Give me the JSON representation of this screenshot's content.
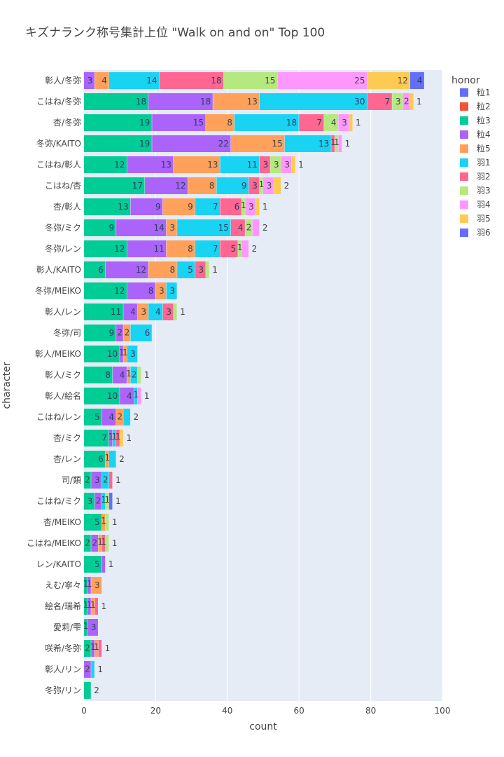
{
  "chart_data": {
    "type": "bar",
    "orientation": "horizontal",
    "barmode": "stack",
    "title": "キズナランク称号集計上位 \"Walk on and on\" Top 100",
    "xlabel": "count",
    "ylabel": "character",
    "xlim": [
      0,
      100
    ],
    "xticks": [
      "0",
      "20",
      "40",
      "60",
      "80",
      "100"
    ],
    "legend_title": "honor",
    "legend_position": "right",
    "categories": [
      "彰人/冬弥",
      "こはね/冬弥",
      "杏/冬弥",
      "冬弥/KAITO",
      "こはね/彰人",
      "こはね/杏",
      "杏/彰人",
      "冬弥/ミク",
      "冬弥/レン",
      "彰人/KAITO",
      "冬弥/MEIKO",
      "彰人/レン",
      "冬弥/司",
      "彰人/MEIKO",
      "彰人/ミク",
      "彰人/絵名",
      "こはね/レン",
      "杏/ミク",
      "杏/レン",
      "司/類",
      "こはね/ミク",
      "杏/MEIKO",
      "こはね/MEIKO",
      "レン/KAITO",
      "えむ/寧々",
      "絵名/瑞希",
      "愛莉/雫",
      "咲希/冬弥",
      "彰人/リン",
      "冬弥/リン"
    ],
    "series": [
      {
        "name": "粒1",
        "color": "#636efa",
        "values": [
          0,
          0,
          0,
          0,
          0,
          0,
          0,
          0,
          0,
          0,
          0,
          0,
          0,
          0,
          0,
          0,
          0,
          0,
          0,
          0,
          0,
          0,
          0,
          0,
          0,
          0,
          0,
          0,
          0,
          0
        ]
      },
      {
        "name": "粒2",
        "color": "#ef553b",
        "values": [
          0,
          0,
          0,
          0,
          0,
          0,
          0,
          0,
          0,
          0,
          0,
          0,
          0,
          0,
          0,
          0,
          0,
          0,
          0,
          0,
          0,
          0,
          0,
          0,
          0,
          0,
          0,
          0,
          0,
          0
        ]
      },
      {
        "name": "粒3",
        "color": "#00cc96",
        "values": [
          0,
          18,
          19,
          19,
          12,
          17,
          13,
          9,
          12,
          6,
          12,
          11,
          9,
          10,
          8,
          10,
          5,
          7,
          6,
          2,
          3,
          5,
          2,
          5,
          1,
          1,
          1,
          2,
          0,
          2
        ]
      },
      {
        "name": "粒4",
        "color": "#ab63fa",
        "values": [
          3,
          18,
          15,
          22,
          13,
          12,
          9,
          14,
          11,
          12,
          8,
          4,
          2,
          1,
          4,
          4,
          4,
          1,
          0,
          3,
          2,
          0,
          2,
          1,
          1,
          1,
          3,
          1,
          2,
          0
        ]
      },
      {
        "name": "粒5",
        "color": "#ffa15a",
        "values": [
          4,
          13,
          8,
          15,
          13,
          8,
          9,
          3,
          8,
          8,
          3,
          3,
          2,
          1,
          1,
          0,
          2,
          0,
          1,
          0,
          0,
          1,
          1,
          0,
          3,
          1,
          0,
          1,
          0,
          0
        ]
      },
      {
        "name": "羽1",
        "color": "#19d3f3",
        "values": [
          14,
          30,
          18,
          13,
          11,
          9,
          7,
          15,
          7,
          5,
          3,
          4,
          6,
          3,
          2,
          1,
          2,
          1,
          2,
          2,
          1,
          0,
          0,
          0,
          0,
          0,
          0,
          0,
          1,
          0
        ]
      },
      {
        "name": "羽2",
        "color": "#ff6692",
        "values": [
          18,
          7,
          7,
          1,
          3,
          3,
          6,
          4,
          5,
          3,
          0,
          3,
          0,
          0,
          0,
          0,
          0,
          1,
          0,
          1,
          0,
          0,
          1,
          0,
          0,
          1,
          0,
          1,
          0,
          0
        ]
      },
      {
        "name": "羽3",
        "color": "#b6e880",
        "values": [
          15,
          3,
          4,
          1,
          3,
          1,
          1,
          2,
          1,
          1,
          0,
          1,
          0,
          0,
          1,
          0,
          0,
          0,
          0,
          0,
          1,
          1,
          1,
          0,
          0,
          0,
          0,
          0,
          0,
          0
        ]
      },
      {
        "name": "羽4",
        "color": "#ff97ff",
        "values": [
          25,
          2,
          3,
          1,
          3,
          3,
          3,
          2,
          2,
          0,
          0,
          0,
          0,
          0,
          0,
          1,
          0,
          0,
          0,
          0,
          0,
          0,
          0,
          0,
          0,
          0,
          0,
          0,
          0,
          0
        ]
      },
      {
        "name": "羽5",
        "color": "#fecb52",
        "values": [
          12,
          1,
          1,
          0,
          1,
          2,
          1,
          0,
          0,
          0,
          0,
          0,
          0,
          0,
          0,
          0,
          0,
          1,
          0,
          0,
          0,
          0,
          0,
          0,
          0,
          0,
          0,
          0,
          0,
          0
        ]
      },
      {
        "name": "羽6",
        "color": "#636efa",
        "values": [
          4,
          0,
          0,
          0,
          0,
          0,
          0,
          0,
          0,
          0,
          0,
          0,
          0,
          0,
          0,
          0,
          0,
          0,
          0,
          0,
          1,
          0,
          0,
          0,
          0,
          0,
          0,
          0,
          0,
          0
        ]
      }
    ]
  }
}
